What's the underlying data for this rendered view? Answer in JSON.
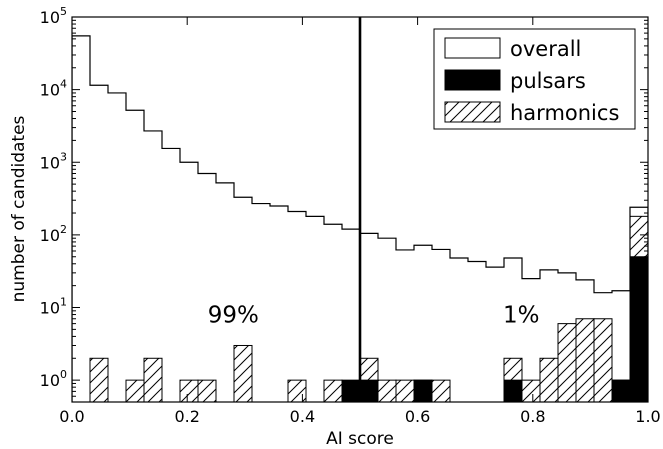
{
  "chart_data": {
    "type": "histogram",
    "xlabel": "AI score",
    "ylabel": "number of candidates",
    "xlim": [
      0.0,
      1.0
    ],
    "ylim": [
      0.5,
      100000
    ],
    "yscale": "log",
    "bin_width": 0.0333,
    "x_ticks": [
      "0.0",
      "0.2",
      "0.4",
      "0.6",
      "0.8",
      "1.0"
    ],
    "y_ticks": [
      {
        "base": "10",
        "exp": "0"
      },
      {
        "base": "10",
        "exp": "1"
      },
      {
        "base": "10",
        "exp": "2"
      },
      {
        "base": "10",
        "exp": "3"
      },
      {
        "base": "10",
        "exp": "4"
      },
      {
        "base": "10",
        "exp": "5"
      }
    ],
    "threshold": 0.5,
    "annotations": [
      "99%",
      "1%"
    ],
    "legend": {
      "position": "top-right",
      "entries": [
        "overall",
        "pulsars",
        "harmonics"
      ]
    },
    "series": [
      {
        "name": "overall",
        "style": "step",
        "values": [
          55000,
          11500,
          9000,
          5200,
          2700,
          1550,
          1000,
          700,
          520,
          330,
          270,
          250,
          210,
          180,
          140,
          120,
          105,
          90,
          62,
          72,
          63,
          48,
          43,
          36,
          48,
          25,
          33,
          30,
          24,
          16,
          17,
          240
        ]
      },
      {
        "name": "pulsars",
        "style": "filled",
        "values": [
          0,
          0,
          0,
          0,
          0,
          0,
          0,
          0,
          0,
          0,
          0,
          0,
          0,
          0,
          0,
          1,
          1,
          0,
          0,
          1,
          0,
          0,
          0,
          0,
          1,
          0,
          0,
          0,
          0,
          0,
          1,
          50
        ]
      },
      {
        "name": "harmonics",
        "style": "hatched",
        "values": [
          0,
          2,
          0,
          1,
          2,
          0,
          1,
          1,
          0,
          3,
          0,
          0,
          1,
          0,
          1,
          0,
          2,
          1,
          1,
          1,
          1,
          0,
          0,
          0,
          2,
          1,
          2,
          6,
          7,
          7,
          1,
          180
        ]
      }
    ]
  }
}
